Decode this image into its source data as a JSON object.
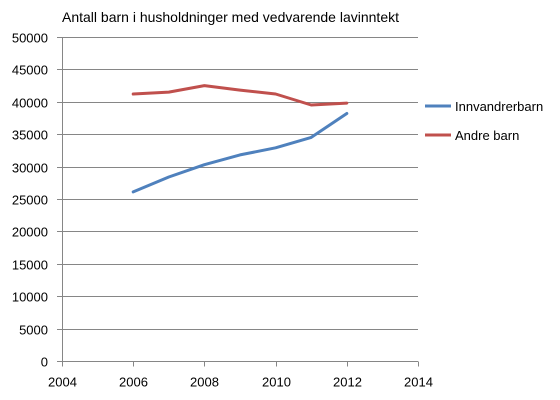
{
  "chart_data": {
    "type": "line",
    "title": "Antall barn i husholdninger med vedvarende lavinntekt",
    "xlabel": "",
    "ylabel": "",
    "xlim": [
      2004,
      2014
    ],
    "ylim": [
      0,
      50000
    ],
    "x_ticks": [
      2004,
      2006,
      2008,
      2010,
      2012,
      2014
    ],
    "y_ticks": [
      0,
      5000,
      10000,
      15000,
      20000,
      25000,
      30000,
      35000,
      40000,
      45000,
      50000
    ],
    "grid": true,
    "legend_position": "right",
    "x": [
      2006,
      2007,
      2008,
      2009,
      2010,
      2011,
      2012
    ],
    "series": [
      {
        "name": "Innvandrerbarn",
        "color": "#4F81BD",
        "values": [
          26100,
          28400,
          30300,
          31800,
          32900,
          34500,
          38200
        ]
      },
      {
        "name": "Andre barn",
        "color": "#C0504D",
        "values": [
          41200,
          41500,
          42500,
          41800,
          41200,
          39500,
          39800
        ]
      }
    ]
  }
}
